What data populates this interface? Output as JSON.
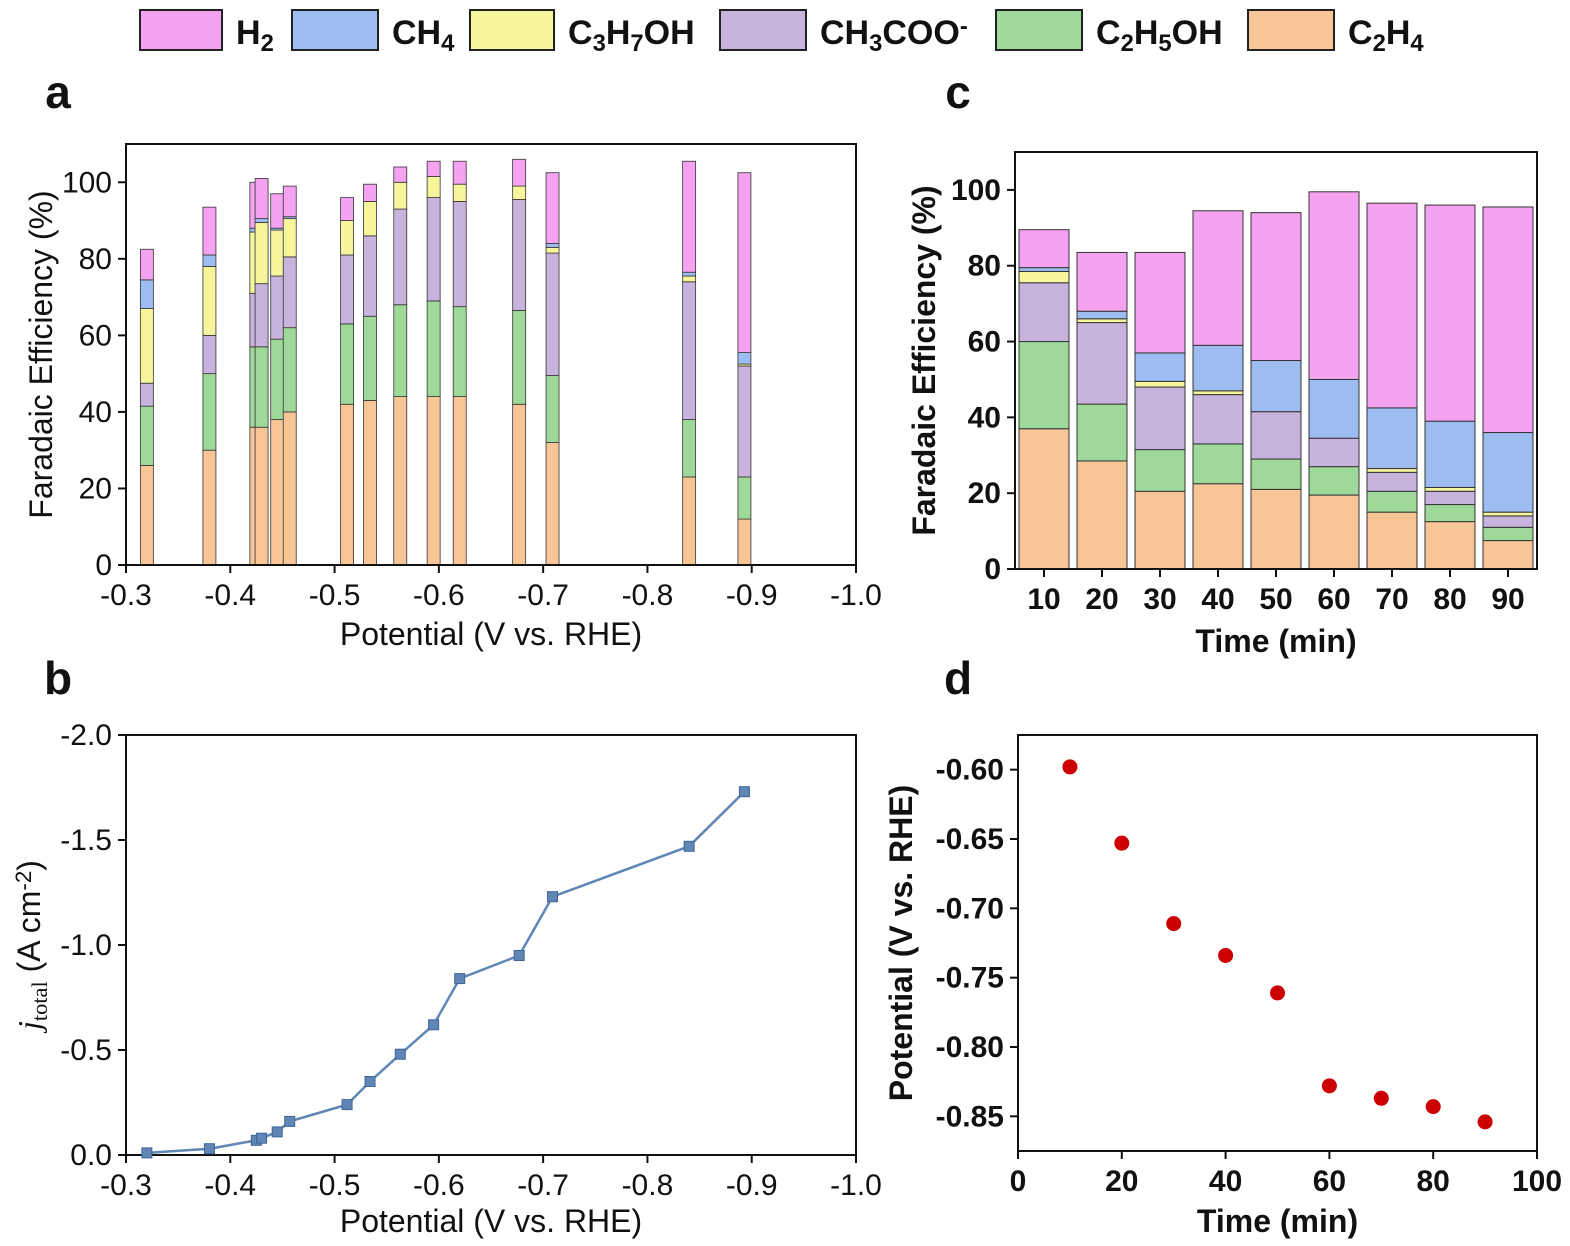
{
  "colors": {
    "H2": "#f5a3f0",
    "CH4": "#9dbdf2",
    "C3H7OH": "#f7f59b",
    "CH3COO": "#c7b3dc",
    "C2H5OH": "#9fd99a",
    "C2H4": "#f8c597",
    "line": "#5f86b5",
    "dot": "#cc0000"
  },
  "legend": [
    {
      "key": "H2",
      "base": "H",
      "sub": "2",
      "sup": ""
    },
    {
      "key": "CH4",
      "base": "CH",
      "sub": "4",
      "sup": ""
    },
    {
      "key": "C3H7OH",
      "parts": [
        [
          "C",
          ""
        ],
        [
          "3",
          "sub"
        ],
        [
          "H",
          ""
        ],
        [
          "7",
          "sub"
        ],
        [
          "OH",
          ""
        ]
      ]
    },
    {
      "key": "CH3COO",
      "parts": [
        [
          "CH",
          ""
        ],
        [
          "3",
          "sub"
        ],
        [
          "COO",
          ""
        ],
        [
          "-",
          "sup"
        ]
      ]
    },
    {
      "key": "C2H5OH",
      "parts": [
        [
          "C",
          ""
        ],
        [
          "2",
          "sub"
        ],
        [
          "H",
          ""
        ],
        [
          "5",
          "sub"
        ],
        [
          "OH",
          ""
        ]
      ]
    },
    {
      "key": "C2H4",
      "parts": [
        [
          "C",
          ""
        ],
        [
          "2",
          "sub"
        ],
        [
          "H",
          ""
        ],
        [
          "4",
          "sub"
        ]
      ]
    }
  ],
  "chart_data": [
    {
      "panel": "a",
      "type": "bar",
      "stacked": true,
      "xlabel": "Potential (V vs. RHE)",
      "ylabel": "Faradaic Efficiency (%)",
      "xlim": [
        -0.3,
        -1.0
      ],
      "ylim": [
        0,
        110
      ],
      "xticks": [
        "-0.3",
        "-0.4",
        "-0.5",
        "-0.6",
        "-0.7",
        "-0.8",
        "-0.9",
        "-1.0"
      ],
      "yticks": [
        "0",
        "20",
        "40",
        "60",
        "80",
        "100"
      ],
      "stack_order": [
        "C2H4",
        "C2H5OH",
        "CH3COO",
        "C3H7OH",
        "CH4",
        "H2"
      ],
      "x": [
        -0.32,
        -0.38,
        -0.425,
        -0.43,
        -0.445,
        -0.457,
        -0.512,
        -0.534,
        -0.563,
        -0.595,
        -0.62,
        -0.677,
        -0.709,
        -0.84,
        -0.893
      ],
      "series": {
        "C2H4": [
          26,
          30,
          36,
          36,
          38,
          40,
          42,
          43,
          44,
          44,
          44,
          42,
          32,
          23,
          12
        ],
        "CH4": [
          7.5,
          3,
          1,
          1,
          0.5,
          0.5,
          0,
          0,
          0,
          0,
          0,
          0,
          1,
          1,
          3
        ],
        "C3H7OH": [
          19.5,
          18,
          16,
          16,
          12,
          10,
          9,
          9,
          7,
          5.5,
          4.5,
          3.5,
          1.5,
          1.5,
          0.5
        ],
        "C2H5OH": [
          15.5,
          20,
          21,
          21,
          21,
          22,
          21,
          22,
          24,
          25,
          23.5,
          24.5,
          17.5,
          15,
          11
        ],
        "CH3COO": [
          6,
          10,
          14,
          16.5,
          16.5,
          18.5,
          18,
          21,
          25,
          27,
          27.5,
          29,
          32,
          36,
          29
        ],
        "H2": [
          8,
          12.5,
          12,
          10.5,
          9,
          8,
          6,
          4.5,
          4,
          4,
          6,
          7,
          18.5,
          29,
          47
        ]
      }
    },
    {
      "panel": "b",
      "type": "line",
      "xlabel": "Potential (V vs. RHE)",
      "ylabel_main": "j",
      "ylabel_sub": "total",
      "ylabel_rest": " (A cm",
      "ylabel_sup": "-2",
      "ylabel_end": ")",
      "xlim": [
        -0.3,
        -1.0
      ],
      "ylim": [
        0,
        -2.0
      ],
      "xticks": [
        "-0.3",
        "-0.4",
        "-0.5",
        "-0.6",
        "-0.7",
        "-0.8",
        "-0.9",
        "-1.0"
      ],
      "yticks": [
        "0.0",
        "-0.5",
        "-1.0",
        "-1.5",
        "-2.0"
      ],
      "x": [
        -0.32,
        -0.38,
        -0.425,
        -0.43,
        -0.445,
        -0.457,
        -0.512,
        -0.534,
        -0.563,
        -0.595,
        -0.62,
        -0.677,
        -0.709,
        -0.84,
        -0.893
      ],
      "y": [
        -0.01,
        -0.03,
        -0.07,
        -0.08,
        -0.11,
        -0.16,
        -0.24,
        -0.35,
        -0.48,
        -0.62,
        -0.84,
        -0.95,
        -1.23,
        -1.47,
        -1.73
      ]
    },
    {
      "panel": "c",
      "type": "bar",
      "stacked": true,
      "xlabel": "Time (min)",
      "ylabel": "Faradaic Efficiency (%)",
      "ylim": [
        0,
        110
      ],
      "categories": [
        "10",
        "20",
        "30",
        "40",
        "50",
        "60",
        "70",
        "80",
        "90"
      ],
      "yticks": [
        "0",
        "20",
        "40",
        "60",
        "80",
        "100"
      ],
      "stack_order": [
        "C2H4",
        "C2H5OH",
        "CH3COO",
        "C3H7OH",
        "CH4",
        "H2"
      ],
      "series": {
        "C2H4": [
          37,
          28.5,
          20.5,
          22.5,
          21,
          19.5,
          15,
          12.5,
          7.5
        ],
        "C2H5OH": [
          23,
          15,
          11,
          10.5,
          8,
          7.5,
          5.5,
          4.5,
          3.5
        ],
        "CH3COO": [
          15.5,
          21.5,
          16.5,
          13,
          12.5,
          7.5,
          5,
          3.5,
          3
        ],
        "C3H7OH": [
          3,
          1,
          1.5,
          1,
          0,
          0,
          1,
          1,
          1
        ],
        "CH4": [
          1,
          2,
          7.5,
          12,
          13.5,
          15.5,
          16,
          17.5,
          21
        ],
        "H2": [
          10,
          15.5,
          26.5,
          35.5,
          39,
          49.5,
          54,
          57,
          59.5
        ]
      }
    },
    {
      "panel": "d",
      "type": "scatter",
      "xlabel": "Time (min)",
      "ylabel": "Potential (V vs. RHE)",
      "xlim": [
        0,
        100
      ],
      "ylim": [
        -0.575,
        -0.875
      ],
      "xticks": [
        "0",
        "20",
        "40",
        "60",
        "80",
        "100"
      ],
      "yticks": [
        "-0.60",
        "-0.65",
        "-0.70",
        "-0.75",
        "-0.80",
        "-0.85"
      ],
      "x": [
        10,
        20,
        30,
        40,
        50,
        60,
        70,
        80,
        90
      ],
      "y": [
        -0.598,
        -0.653,
        -0.711,
        -0.734,
        -0.761,
        -0.828,
        -0.837,
        -0.843,
        -0.854
      ]
    }
  ]
}
